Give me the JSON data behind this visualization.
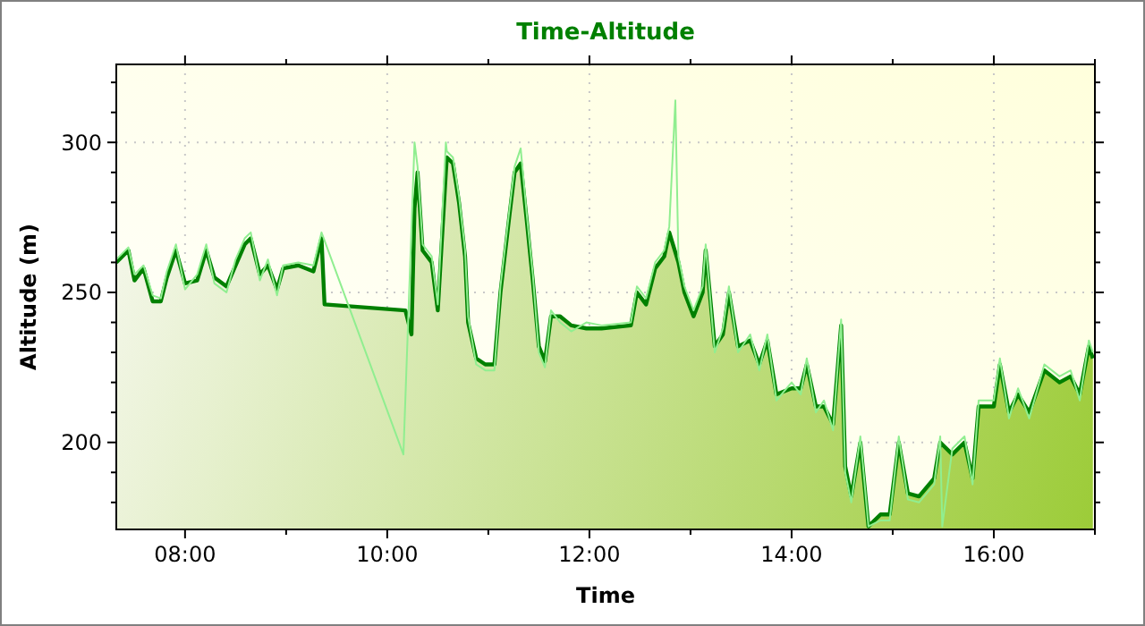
{
  "chart_data": {
    "type": "line",
    "title": "Time-Altitude",
    "xlabel": "Time",
    "ylabel": "Altitude (m)",
    "xlim": [
      7.32,
      17
    ],
    "ylim": [
      171,
      326
    ],
    "xticks": [
      {
        "value": 8,
        "label": "08:00"
      },
      {
        "value": 9,
        "label": null
      },
      {
        "value": 10,
        "label": "10:00"
      },
      {
        "value": 11,
        "label": null
      },
      {
        "value": 12,
        "label": "12:00"
      },
      {
        "value": 13,
        "label": null
      },
      {
        "value": 14,
        "label": "14:00"
      },
      {
        "value": 15,
        "label": null
      },
      {
        "value": 16,
        "label": "16:00"
      },
      {
        "value": 17,
        "label": null
      }
    ],
    "yticks": [
      {
        "value": 180,
        "label": null
      },
      {
        "value": 190,
        "label": null
      },
      200,
      {
        "value": 210,
        "label": null
      },
      {
        "value": 220,
        "label": null
      },
      {
        "value": 230,
        "label": null
      },
      {
        "value": 240,
        "label": null
      },
      250,
      {
        "value": 260,
        "label": null
      },
      {
        "value": 270,
        "label": null
      },
      {
        "value": 280,
        "label": null
      },
      {
        "value": 290,
        "label": null
      },
      300,
      {
        "value": 310,
        "label": null
      },
      {
        "value": 320,
        "label": null
      }
    ],
    "grid": true,
    "marker": "none",
    "line_style": "solid",
    "series": [
      {
        "color": "#90ee90",
        "x": [
          7.32,
          7.44,
          7.5,
          7.59,
          7.68,
          7.76,
          7.82,
          7.91,
          8.0,
          8.12,
          8.21,
          8.29,
          8.41,
          8.5,
          8.59,
          8.65,
          8.74,
          8.82,
          8.91,
          8.97,
          9.12,
          9.27,
          9.35,
          10.16,
          10.27,
          10.3,
          10.35,
          10.44,
          10.5,
          10.58,
          10.59,
          10.65,
          10.71,
          10.77,
          10.8,
          10.88,
          10.97,
          11.06,
          11.12,
          11.21,
          11.26,
          11.32,
          11.38,
          11.44,
          11.5,
          11.56,
          11.62,
          11.71,
          11.82,
          11.97,
          12.12,
          12.41,
          12.47,
          12.56,
          12.65,
          12.74,
          12.79,
          12.85,
          12.88,
          12.94,
          13.03,
          13.12,
          13.15,
          13.24,
          13.32,
          13.38,
          13.47,
          13.59,
          13.68,
          13.76,
          13.85,
          14.0,
          14.09,
          14.15,
          14.24,
          14.32,
          14.41,
          14.49,
          14.53,
          14.59,
          14.68,
          14.76,
          14.88,
          14.97,
          15.06,
          15.15,
          15.26,
          15.41,
          15.47,
          15.49,
          15.59,
          15.71,
          15.79,
          15.85,
          16.0,
          16.06,
          16.15,
          16.24,
          16.35,
          16.5,
          16.65,
          16.76,
          16.85,
          16.94,
          16.98
        ],
        "values": [
          261,
          265,
          256,
          259,
          249,
          248,
          257,
          266,
          251,
          256,
          266,
          253,
          250,
          261,
          268,
          270,
          254,
          261,
          249,
          259,
          260,
          259,
          270,
          196,
          300,
          292,
          266,
          262,
          246,
          300,
          297,
          295,
          282,
          264,
          242,
          226,
          224,
          224,
          252,
          278,
          292,
          298,
          276,
          256,
          230,
          225,
          244,
          240,
          237,
          240,
          239,
          240,
          252,
          248,
          260,
          264,
          272,
          314,
          262,
          252,
          244,
          252,
          266,
          230,
          238,
          252,
          230,
          236,
          224,
          236,
          214,
          220,
          216,
          228,
          210,
          214,
          204,
          241,
          190,
          180,
          202,
          172,
          174,
          174,
          202,
          181,
          180,
          186,
          202,
          172,
          198,
          202,
          186,
          214,
          214,
          228,
          208,
          218,
          208,
          226,
          222,
          224,
          214,
          234,
          230
        ]
      },
      {
        "type": "area",
        "color": "#008000",
        "x": [
          7.32,
          7.44,
          7.5,
          7.59,
          7.68,
          7.76,
          7.82,
          7.91,
          8.0,
          8.12,
          8.21,
          8.29,
          8.41,
          8.5,
          8.59,
          8.65,
          8.74,
          8.82,
          8.91,
          8.97,
          9.12,
          9.27,
          9.35,
          9.38,
          10.18,
          10.24,
          10.27,
          10.3,
          10.35,
          10.44,
          10.5,
          10.58,
          10.59,
          10.65,
          10.71,
          10.77,
          10.8,
          10.88,
          10.97,
          11.06,
          11.12,
          11.21,
          11.26,
          11.32,
          11.38,
          11.44,
          11.5,
          11.56,
          11.62,
          11.71,
          11.82,
          11.97,
          12.12,
          12.41,
          12.47,
          12.56,
          12.65,
          12.74,
          12.79,
          12.88,
          12.94,
          13.03,
          13.12,
          13.15,
          13.24,
          13.32,
          13.38,
          13.47,
          13.59,
          13.68,
          13.76,
          13.85,
          14.0,
          14.09,
          14.15,
          14.24,
          14.32,
          14.41,
          14.49,
          14.53,
          14.59,
          14.68,
          14.76,
          14.88,
          14.97,
          15.06,
          15.15,
          15.26,
          15.41,
          15.47,
          15.59,
          15.71,
          15.79,
          15.85,
          16.0,
          16.06,
          16.15,
          16.24,
          16.35,
          16.5,
          16.65,
          16.76,
          16.85,
          16.94,
          16.98
        ],
        "values": [
          260,
          264,
          254,
          258,
          247,
          247,
          255,
          264,
          253,
          254,
          264,
          255,
          252,
          259,
          266,
          268,
          256,
          259,
          251,
          258,
          259,
          257,
          268,
          246,
          244,
          236,
          278,
          290,
          264,
          260,
          244,
          290,
          295,
          293,
          280,
          262,
          240,
          228,
          226,
          226,
          250,
          276,
          290,
          293,
          274,
          254,
          232,
          227,
          242,
          242,
          239,
          238,
          238,
          239,
          250,
          246,
          258,
          262,
          270,
          260,
          250,
          242,
          250,
          264,
          232,
          236,
          250,
          232,
          234,
          226,
          234,
          216,
          218,
          218,
          226,
          212,
          212,
          206,
          239,
          192,
          182,
          200,
          172,
          176,
          176,
          200,
          183,
          182,
          188,
          200,
          196,
          200,
          188,
          212,
          212,
          226,
          210,
          216,
          210,
          224,
          220,
          222,
          216,
          232,
          228
        ]
      }
    ]
  }
}
